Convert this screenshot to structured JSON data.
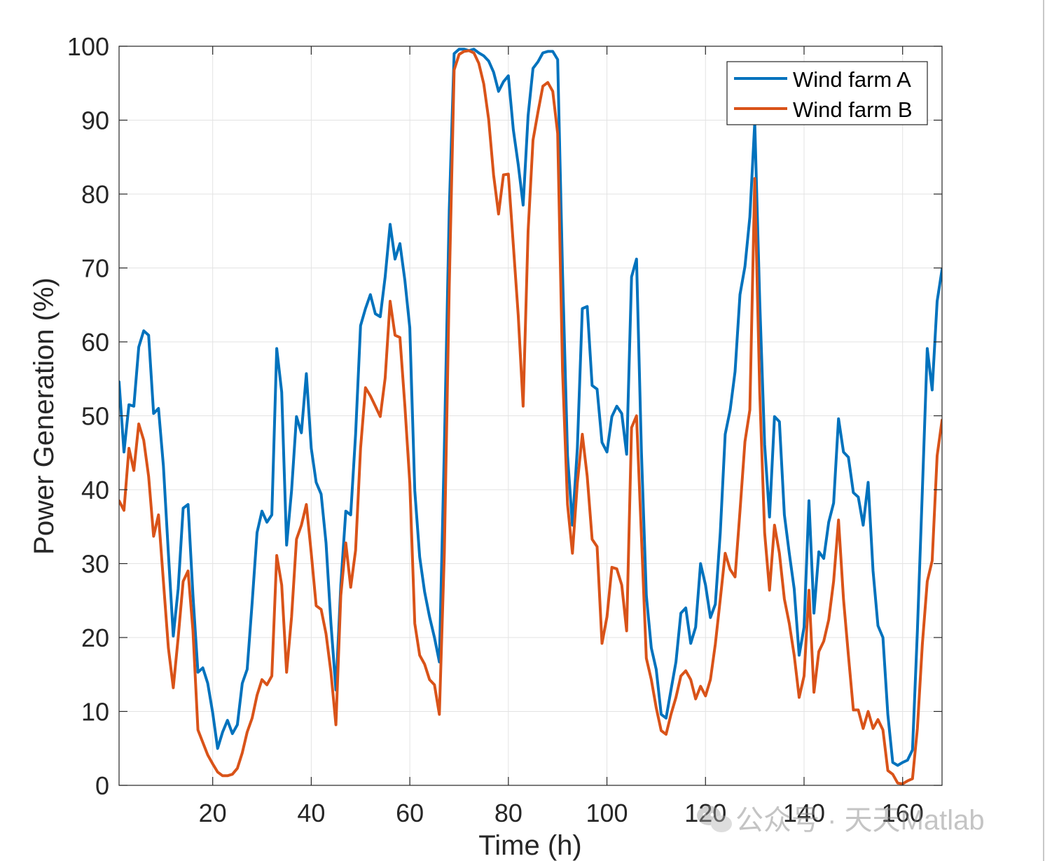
{
  "chart_data": {
    "type": "line",
    "title": "",
    "xlabel": "Time (h)",
    "ylabel": "Power Generation (%)",
    "xlim": [
      1,
      168
    ],
    "ylim": [
      0,
      100
    ],
    "xticks": [
      20,
      40,
      60,
      80,
      100,
      120,
      140,
      160
    ],
    "yticks": [
      0,
      10,
      20,
      30,
      40,
      50,
      60,
      70,
      80,
      90,
      100
    ],
    "grid": true,
    "legend_location": "top-right",
    "x": [
      1,
      2,
      3,
      4,
      5,
      6,
      7,
      8,
      9,
      10,
      11,
      12,
      13,
      14,
      15,
      16,
      17,
      18,
      19,
      20,
      21,
      22,
      23,
      24,
      25,
      26,
      27,
      28,
      29,
      30,
      31,
      32,
      33,
      34,
      35,
      36,
      37,
      38,
      39,
      40,
      41,
      42,
      43,
      44,
      45,
      46,
      47,
      48,
      49,
      50,
      51,
      52,
      53,
      54,
      55,
      56,
      57,
      58,
      59,
      60,
      61,
      62,
      63,
      64,
      65,
      66,
      67,
      68,
      69,
      70,
      71,
      72,
      73,
      74,
      75,
      76,
      77,
      78,
      79,
      80,
      81,
      82,
      83,
      84,
      85,
      86,
      87,
      88,
      89,
      90,
      91,
      92,
      93,
      94,
      95,
      96,
      97,
      98,
      99,
      100,
      101,
      102,
      103,
      104,
      105,
      106,
      107,
      108,
      109,
      110,
      111,
      112,
      113,
      114,
      115,
      116,
      117,
      118,
      119,
      120,
      121,
      122,
      123,
      124,
      125,
      126,
      127,
      128,
      129,
      130,
      131,
      132,
      133,
      134,
      135,
      136,
      137,
      138,
      139,
      140,
      141,
      142,
      143,
      144,
      145,
      146,
      147,
      148,
      149,
      150,
      151,
      152,
      153,
      154,
      155,
      156,
      157,
      158,
      159,
      160,
      161,
      162,
      163,
      164,
      165,
      166,
      167,
      168
    ],
    "series": [
      {
        "name": "Wind farm A",
        "color": "#0072BD",
        "values": [
          54.6,
          45.1,
          51.5,
          51.3,
          59.3,
          61.5,
          60.9,
          50.3,
          51.0,
          43.2,
          31.4,
          20.2,
          26.6,
          37.5,
          38.0,
          25.7,
          15.3,
          15.9,
          13.8,
          9.8,
          5.0,
          7.2,
          8.8,
          7.0,
          8.2,
          13.8,
          15.7,
          24.7,
          34.2,
          37.1,
          35.6,
          36.6,
          59.1,
          53.2,
          32.5,
          39.9,
          49.9,
          47.7,
          55.7,
          45.6,
          41.0,
          39.4,
          32.8,
          21.9,
          12.9,
          27.1,
          37.1,
          36.6,
          47.5,
          62.2,
          64.5,
          66.4,
          63.8,
          63.4,
          68.8,
          75.9,
          71.2,
          73.3,
          68.3,
          61.9,
          39.9,
          30.9,
          26.2,
          22.8,
          20.0,
          16.7,
          45.6,
          77.8,
          99.0,
          99.6,
          99.6,
          99.4,
          99.6,
          99.1,
          98.7,
          98.0,
          96.5,
          93.9,
          95.2,
          96.0,
          88.7,
          84.0,
          78.5,
          90.6,
          97.0,
          97.9,
          99.1,
          99.3,
          99.3,
          98.2,
          69.3,
          44.6,
          35.2,
          45.6,
          64.5,
          64.8,
          54.1,
          53.6,
          46.4,
          45.1,
          49.9,
          51.3,
          50.3,
          44.8,
          68.8,
          71.2,
          45.1,
          25.7,
          18.6,
          15.7,
          9.6,
          9.1,
          12.9,
          16.7,
          23.3,
          24.0,
          19.2,
          21.4,
          30.0,
          27.1,
          22.7,
          24.5,
          34.2,
          47.5,
          50.8,
          56.0,
          66.4,
          70.2,
          76.9,
          89.7,
          65.5,
          46.1,
          36.3,
          49.9,
          49.2,
          36.6,
          31.4,
          26.6,
          17.6,
          21.4,
          38.5,
          23.3,
          31.6,
          30.7,
          35.6,
          38.2,
          49.6,
          45.1,
          44.4,
          39.6,
          39.0,
          35.2,
          41.0,
          29.0,
          21.6,
          20.0,
          9.6,
          3.1,
          2.7,
          3.1,
          3.4,
          4.8,
          20.9,
          39.9,
          59.1,
          53.5,
          65.5,
          69.8
        ]
      },
      {
        "name": "Wind farm B",
        "color": "#D95319",
        "values": [
          38.5,
          37.2,
          45.6,
          42.6,
          48.9,
          46.7,
          41.8,
          33.7,
          36.6,
          27.6,
          18.6,
          13.2,
          20.0,
          27.6,
          29.0,
          20.9,
          7.5,
          5.8,
          4.1,
          2.9,
          1.8,
          1.3,
          1.3,
          1.5,
          2.3,
          4.4,
          7.2,
          9.1,
          12.2,
          14.3,
          13.6,
          14.8,
          31.1,
          27.1,
          15.3,
          22.8,
          33.3,
          35.2,
          38.0,
          31.4,
          24.3,
          23.8,
          20.5,
          15.3,
          8.2,
          25.7,
          32.8,
          26.8,
          31.8,
          45.6,
          53.8,
          52.7,
          51.3,
          49.9,
          55.1,
          65.5,
          60.9,
          60.6,
          51.3,
          40.9,
          21.9,
          17.6,
          16.4,
          14.3,
          13.6,
          9.6,
          31.4,
          67.4,
          96.8,
          98.9,
          99.3,
          99.4,
          99.1,
          97.7,
          94.9,
          90.1,
          82.6,
          77.3,
          82.6,
          82.7,
          73.1,
          63.6,
          51.3,
          75.0,
          87.3,
          91.1,
          94.6,
          95.1,
          93.9,
          88.2,
          56.0,
          38.0,
          31.4,
          40.9,
          47.5,
          41.8,
          33.3,
          32.3,
          19.2,
          22.8,
          29.5,
          29.3,
          27.1,
          20.9,
          48.4,
          50.0,
          33.7,
          17.2,
          14.3,
          10.5,
          7.4,
          6.9,
          9.6,
          11.9,
          14.8,
          15.5,
          14.3,
          11.7,
          13.4,
          12.1,
          14.3,
          19.1,
          25.2,
          31.4,
          29.2,
          28.2,
          37.1,
          46.5,
          50.8,
          82.1,
          53.2,
          34.2,
          26.4,
          35.2,
          31.4,
          25.2,
          21.9,
          17.6,
          11.9,
          14.8,
          26.4,
          12.6,
          18.1,
          19.5,
          22.4,
          27.6,
          35.9,
          25.2,
          17.6,
          10.2,
          10.2,
          7.7,
          10.0,
          7.7,
          8.9,
          7.5,
          2.0,
          1.5,
          0.3,
          0.2,
          0.6,
          0.9,
          7.7,
          19.1,
          27.6,
          30.4,
          44.6,
          49.4
        ]
      }
    ]
  },
  "watermark": {
    "text": "公众号 · 天天Matlab",
    "icon": "chat-bubbles-icon"
  },
  "colors": {
    "axes": "#262626",
    "grid": "#e3e3e3",
    "background": "#ffffff"
  }
}
